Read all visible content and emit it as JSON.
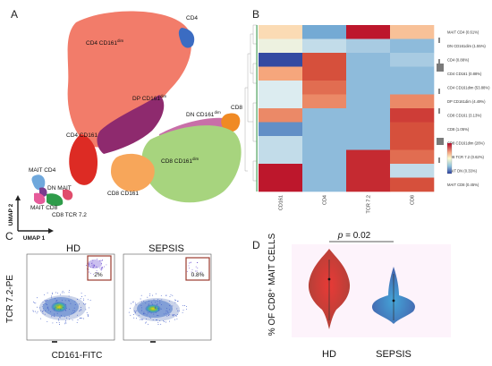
{
  "figure": {
    "panels": {
      "a": "A",
      "b": "B",
      "c": "C",
      "d": "D"
    },
    "umap": {
      "axis_y": "UMAP 2",
      "axis_x": "UMAP 1",
      "clusters": {
        "cd4": "CD4",
        "cd4_cd161dim": "CD4 CD161",
        "cd4_cd161dim_sup": "dim",
        "dp_cd161dim": "DP CD161",
        "dp_cd161dim_sup": "dim",
        "dn_cd161dim": "DN CD161",
        "dn_cd161dim_sup": "dim",
        "cd4_cd161": "CD4 CD161",
        "cd8": "CD8",
        "cd8_cd161dim": "CD8 CD161",
        "cd8_cd161dim_sup": "dim",
        "cd8_cd161": "CD8 CD161",
        "cd8_tcr72": "CD8 TCR 7.2",
        "mait_cd4": "MAIT CD4",
        "dn_mait": "DN MAIT",
        "mait_cd8": "MAIT CD8"
      }
    },
    "heatmap": {
      "columns": [
        "CD161",
        "CD4",
        "TCR 7.2",
        "CD8"
      ],
      "row_axis": "Cluster_ID",
      "rows": [
        "MAIT CD4 (0.61%)",
        "DN CD161dim (1.55%)",
        "CD4 (0.88%)",
        "CD4 CD161 (0.88%)",
        "CD4 CD161dim (53.88%)",
        "DP CD161dim (4.49%)",
        "CD8 CD161 (3.13%)",
        "CD8 (1.05%)",
        "CD8 CD161dim (26%)",
        "CD8 TCR 7.2 (0.62%)",
        "MAIT DN (0.33%)",
        "MAIT CD8 (0.45%)"
      ],
      "values": [
        [
          0.55,
          0.2,
          0.95,
          0.6
        ],
        [
          0.45,
          0.35,
          0.3,
          0.25
        ],
        [
          0.02,
          0.8,
          0.25,
          0.3
        ],
        [
          0.65,
          0.8,
          0.25,
          0.25
        ],
        [
          0.4,
          0.75,
          0.25,
          0.25
        ],
        [
          0.4,
          0.7,
          0.25,
          0.7
        ],
        [
          0.7,
          0.25,
          0.25,
          0.85
        ],
        [
          0.15,
          0.25,
          0.25,
          0.8
        ],
        [
          0.35,
          0.25,
          0.25,
          0.8
        ],
        [
          0.35,
          0.25,
          0.9,
          0.75
        ],
        [
          0.95,
          0.25,
          0.9,
          0.35
        ],
        [
          0.95,
          0.25,
          0.9,
          0.8
        ]
      ],
      "legend_title": "expression",
      "legend_ticks": [
        "0.8",
        "0.6",
        "0.4",
        "0.2",
        "0.0"
      ]
    },
    "flow": {
      "hd_title": "HD",
      "sepsis_title": "SEPSIS",
      "hd_gate_pct": "2%",
      "sepsis_gate_pct": "0.8%",
      "y_label": "TCR 7.2-PE",
      "x_label": "CD161-FITC"
    },
    "violin": {
      "y_label": "% OF  CD8⁺ MAIT CELLS",
      "p_label": "p",
      "p_value": "= 0.02",
      "groups": [
        "HD",
        "SEPSIS"
      ],
      "colors": {
        "hd": "#d92b2b",
        "sepsis": "#3a6fb8"
      }
    }
  },
  "chart_data": {
    "type": "heatmap",
    "columns": [
      "CD161",
      "CD4",
      "TCR 7.2",
      "CD8"
    ],
    "row_axis": "Cluster_ID",
    "rows": [
      "MAIT CD4 (0.61%)",
      "DN CD161dim (1.55%)",
      "CD4 (0.88%)",
      "CD4 CD161 (0.88%)",
      "CD4 CD161dim (53.88%)",
      "DP CD161dim (4.49%)",
      "CD8 CD161 (3.13%)",
      "CD8 (1.05%)",
      "CD8 CD161dim (26%)",
      "CD8 TCR 7.2 (0.62%)",
      "MAIT DN (0.33%)",
      "MAIT CD8 (0.45%)"
    ],
    "legend_title": "expression",
    "color_range": [
      0,
      0.8
    ]
  }
}
